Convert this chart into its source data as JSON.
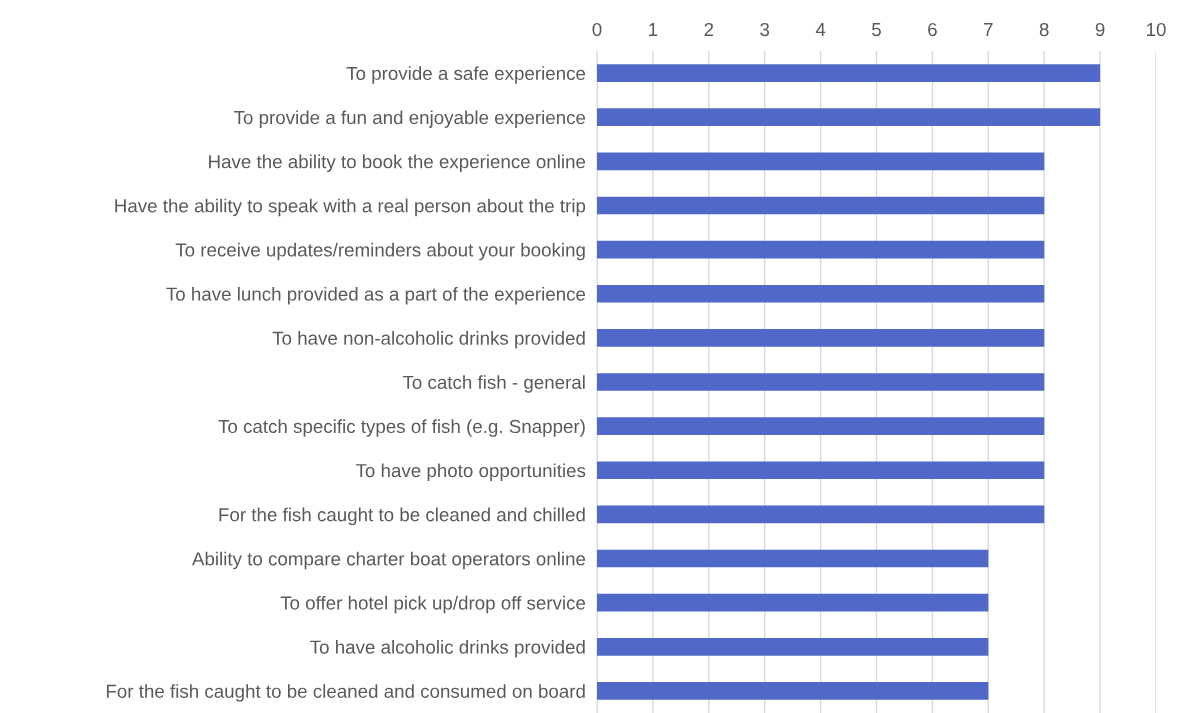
{
  "chart_data": {
    "type": "bar",
    "orientation": "horizontal",
    "categories": [
      "To provide a safe experience",
      "To provide a fun and enjoyable experience",
      "Have the ability to book the experience online",
      "Have the ability to speak with a real person about the trip",
      "To receive updates/reminders about your booking",
      "To have lunch provided as a part of the experience",
      "To have non-alcoholic drinks provided",
      "To catch fish - general",
      "To catch specific types of fish (e.g. Snapper)",
      "To have photo opportunities",
      "For the fish caught to be cleaned and chilled",
      "Ability to compare charter boat operators online",
      "To offer hotel pick up/drop off service",
      "To have alcoholic drinks provided",
      "For the fish caught to be cleaned and consumed on board"
    ],
    "values": [
      9,
      9,
      8,
      8,
      8,
      8,
      8,
      8,
      8,
      8,
      8,
      7,
      7,
      7,
      7
    ],
    "color": "#5068c8",
    "xlim": [
      0,
      10
    ],
    "xticks": [
      0,
      1,
      2,
      3,
      4,
      5,
      6,
      7,
      8,
      9,
      10
    ],
    "grid": "x",
    "legend": false
  }
}
